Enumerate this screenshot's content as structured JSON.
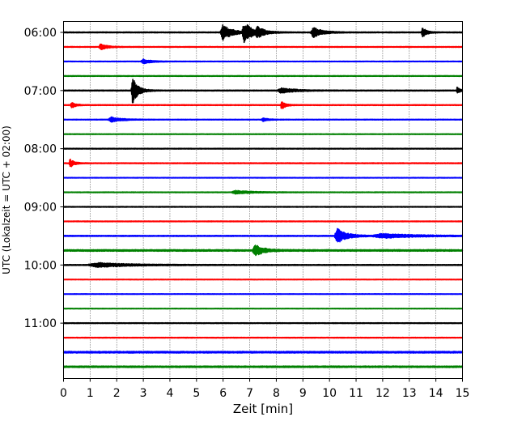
{
  "chart_data": {
    "type": "line",
    "title": "",
    "xlabel": "Zeit  [min]",
    "ylabel": "UTC (Lokalzeit = UTC + 02:00)",
    "xlim": [
      0,
      15
    ],
    "x_ticks": [
      "0",
      "1",
      "2",
      "3",
      "4",
      "5",
      "6",
      "7",
      "8",
      "9",
      "10",
      "11",
      "12",
      "13",
      "14",
      "15"
    ],
    "y_ticks": [
      "06:00",
      "07:00",
      "08:00",
      "09:00",
      "10:00",
      "11:00"
    ],
    "grid": "vertical-dotted",
    "colors": [
      "#000000",
      "#ff0000",
      "#0000ff",
      "#008000"
    ],
    "traces": [
      {
        "start": "06:00",
        "color": "#000000",
        "level": 0.55,
        "events": [
          {
            "x": 6.0,
            "amp": 9,
            "w": 0.35
          },
          {
            "x": 6.8,
            "amp": 12,
            "w": 0.3
          },
          {
            "x": 7.3,
            "amp": 5,
            "w": 0.25
          },
          {
            "x": 9.4,
            "amp": 6,
            "w": 0.35
          },
          {
            "x": 13.5,
            "amp": 6,
            "w": 0.15
          }
        ]
      },
      {
        "start": "06:15",
        "color": "#ff0000",
        "level": 0.45,
        "events": [
          {
            "x": 1.4,
            "amp": 3.5,
            "w": 0.25
          }
        ]
      },
      {
        "start": "06:30",
        "color": "#0000ff",
        "level": 0.4,
        "events": [
          {
            "x": 3.0,
            "amp": 2.5,
            "w": 0.3
          }
        ]
      },
      {
        "start": "06:45",
        "color": "#008000",
        "level": 0.45,
        "events": []
      },
      {
        "start": "07:00",
        "color": "#000000",
        "level": 0.55,
        "events": [
          {
            "x": 2.6,
            "amp": 16,
            "w": 0.2
          },
          {
            "x": 8.2,
            "amp": 3,
            "w": 0.5
          },
          {
            "x": 14.8,
            "amp": 4,
            "w": 0.1
          }
        ]
      },
      {
        "start": "07:15",
        "color": "#ff0000",
        "level": 0.5,
        "events": [
          {
            "x": 0.3,
            "amp": 3.5,
            "w": 0.15
          },
          {
            "x": 8.2,
            "amp": 6,
            "w": 0.12
          }
        ]
      },
      {
        "start": "07:30",
        "color": "#0000ff",
        "level": 0.4,
        "events": [
          {
            "x": 1.8,
            "amp": 3,
            "w": 0.4
          },
          {
            "x": 7.5,
            "amp": 2,
            "w": 0.2
          }
        ]
      },
      {
        "start": "07:45",
        "color": "#008000",
        "level": 0.4,
        "events": []
      },
      {
        "start": "08:00",
        "color": "#000000",
        "level": 0.45,
        "events": []
      },
      {
        "start": "08:15",
        "color": "#ff0000",
        "level": 0.5,
        "events": [
          {
            "x": 0.25,
            "amp": 5,
            "w": 0.15
          }
        ]
      },
      {
        "start": "08:30",
        "color": "#0000ff",
        "level": 0.35,
        "events": []
      },
      {
        "start": "08:45",
        "color": "#008000",
        "level": 0.4,
        "events": [
          {
            "x": 6.5,
            "amp": 2,
            "w": 0.6
          }
        ]
      },
      {
        "start": "09:00",
        "color": "#000000",
        "level": 0.45,
        "events": []
      },
      {
        "start": "09:15",
        "color": "#ff0000",
        "level": 0.45,
        "events": []
      },
      {
        "start": "09:30",
        "color": "#0000ff",
        "level": 0.6,
        "events": [
          {
            "x": 10.3,
            "amp": 9,
            "w": 0.35
          },
          {
            "x": 12.0,
            "amp": 2.5,
            "w": 1.2
          }
        ]
      },
      {
        "start": "09:45",
        "color": "#008000",
        "level": 1.0,
        "events": [
          {
            "x": 7.2,
            "amp": 7,
            "w": 0.3
          }
        ]
      },
      {
        "start": "10:00",
        "color": "#000000",
        "level": 0.55,
        "events": [
          {
            "x": 1.3,
            "amp": 2.5,
            "w": 1.2
          }
        ]
      },
      {
        "start": "10:15",
        "color": "#ff0000",
        "level": 0.35,
        "events": []
      },
      {
        "start": "10:30",
        "color": "#0000ff",
        "level": 0.35,
        "events": []
      },
      {
        "start": "10:45",
        "color": "#008000",
        "level": 0.35,
        "events": []
      },
      {
        "start": "11:00",
        "color": "#000000",
        "level": 0.45,
        "events": []
      },
      {
        "start": "11:15",
        "color": "#ff0000",
        "level": 0.45,
        "events": []
      },
      {
        "start": "11:30",
        "color": "#0000ff",
        "level": 1.0,
        "events": []
      },
      {
        "start": "11:45",
        "color": "#008000",
        "level": 0.9,
        "events": []
      }
    ]
  }
}
